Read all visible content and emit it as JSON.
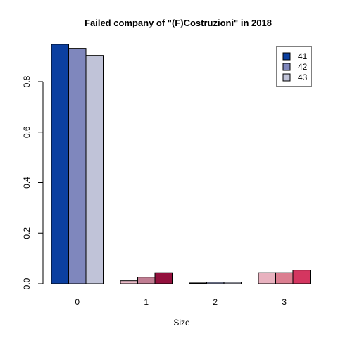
{
  "chart_data": {
    "type": "bar",
    "title": "Failed company of  \"(F)Costruzioni\" in 2018",
    "xlabel": "Size",
    "ylabel": "",
    "categories": [
      "0",
      "1",
      "2",
      "3"
    ],
    "series": [
      {
        "name": "41",
        "values": [
          0.948,
          0.012,
          0.003,
          0.044
        ]
      },
      {
        "name": "42",
        "values": [
          0.932,
          0.026,
          0.006,
          0.044
        ]
      },
      {
        "name": "43",
        "values": [
          0.904,
          0.044,
          0.006,
          0.054
        ]
      }
    ],
    "bar_colors": [
      [
        "#0b3fa0",
        "#7f87bd",
        "#c0c3d8"
      ],
      [
        "#e8bac7",
        "#c07d92",
        "#93103d"
      ],
      [
        "#0f0f0f",
        "#9aa1c2",
        "#c8c9d6"
      ],
      [
        "#e8b2bf",
        "#db7e90",
        "#d43660"
      ]
    ],
    "legend_colors": [
      "#0b3fa0",
      "#7f87bd",
      "#c0c3d8"
    ],
    "yticks": [
      "0.0",
      "0.2",
      "0.4",
      "0.6",
      "0.8"
    ],
    "ylim": [
      0,
      0.97
    ],
    "legend_position": "top-right",
    "grid": false
  }
}
